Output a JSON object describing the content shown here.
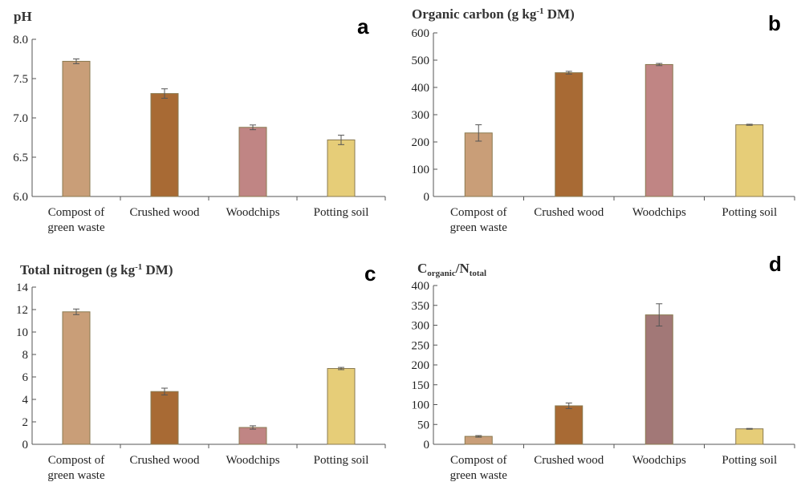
{
  "categories_display": [
    [
      "Compost of",
      "green waste"
    ],
    [
      "Crushed wood"
    ],
    [
      "Woodchips"
    ],
    [
      "Potting soil"
    ]
  ],
  "colors": [
    "#c99e78",
    "#a86a34",
    "#c08584",
    "#e6cd78"
  ],
  "colors_panel_d": [
    "#c99e78",
    "#a86a34",
    "#a27877",
    "#e6cd78"
  ],
  "chart_data": [
    {
      "type": "bar",
      "panel_letter": "a",
      "title": "pH",
      "categories": [
        "Compost of green waste",
        "Crushed wood",
        "Woodchips",
        "Potting soil"
      ],
      "values": [
        7.72,
        7.31,
        6.88,
        6.72
      ],
      "errors": [
        0.03,
        0.06,
        0.03,
        0.06
      ],
      "ylim": [
        6.0,
        8.0
      ],
      "yticks": [
        "6.0",
        "6.5",
        "7.0",
        "7.5",
        "8.0"
      ],
      "xlabel": "",
      "ylabel": "",
      "grid": false
    },
    {
      "type": "bar",
      "panel_letter": "b",
      "title": "Organic carbon (g kg",
      "title_sup": "-1",
      "title_end": " DM)",
      "categories": [
        "Compost of green waste",
        "Crushed wood",
        "Woodchips",
        "Potting soil"
      ],
      "values": [
        233,
        454,
        484,
        263
      ],
      "errors": [
        30,
        5,
        4,
        2
      ],
      "ylim": [
        0,
        600
      ],
      "yticks": [
        "0",
        "100",
        "200",
        "300",
        "400",
        "500",
        "600"
      ],
      "xlabel": "",
      "ylabel": "",
      "grid": false
    },
    {
      "type": "bar",
      "panel_letter": "c",
      "title": "Total nitrogen  (g kg",
      "title_sup": "-1",
      "title_end": " DM)",
      "categories": [
        "Compost of green waste",
        "Crushed wood",
        "Woodchips",
        "Potting soil"
      ],
      "values": [
        11.8,
        4.7,
        1.5,
        6.75
      ],
      "errors": [
        0.25,
        0.3,
        0.15,
        0.1
      ],
      "ylim": [
        0,
        14
      ],
      "yticks": [
        "0",
        "2",
        "4",
        "6",
        "8",
        "10",
        "12",
        "14"
      ],
      "xlabel": "",
      "ylabel": "",
      "grid": false
    },
    {
      "type": "bar",
      "panel_letter": "d",
      "title": "C",
      "title_sub1": "organic",
      "title_mid": "/N",
      "title_sub2": "total",
      "categories": [
        "Compost of green waste",
        "Crushed wood",
        "Woodchips",
        "Potting soil"
      ],
      "values": [
        20,
        97,
        326,
        39
      ],
      "errors": [
        2,
        7,
        28,
        1
      ],
      "ylim": [
        0,
        400
      ],
      "yticks": [
        "0",
        "50",
        "100",
        "150",
        "200",
        "250",
        "300",
        "350",
        "400"
      ],
      "xlabel": "",
      "ylabel": "",
      "grid": false
    }
  ]
}
